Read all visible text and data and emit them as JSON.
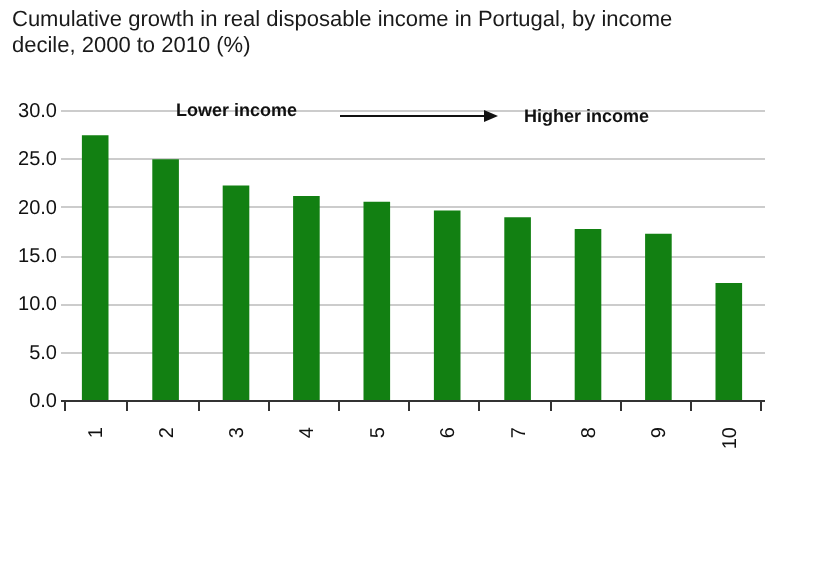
{
  "chart_data": {
    "type": "bar",
    "title": "Cumulative growth in real disposable income in Portugal, by income decile, 2000 to 2010 (%)",
    "categories": [
      "1",
      "2",
      "3",
      "4",
      "5",
      "6",
      "7",
      "8",
      "9",
      "10"
    ],
    "values": [
      27.4,
      24.9,
      22.2,
      21.1,
      20.5,
      19.6,
      18.9,
      17.7,
      17.2,
      12.1
    ],
    "color": "#128012",
    "ylim": [
      0,
      30
    ],
    "yticks": [
      {
        "value": 0,
        "label": "0.0"
      },
      {
        "value": 5,
        "label": "5.0"
      },
      {
        "value": 10,
        "label": "10.0"
      },
      {
        "value": 15,
        "label": "15.0"
      },
      {
        "value": 20,
        "label": "20.0"
      },
      {
        "value": 25,
        "label": "25.0"
      },
      {
        "value": 30,
        "label": "30.0"
      }
    ],
    "grid": "y",
    "annotations": [
      "Lower income",
      "Higher income"
    ]
  }
}
